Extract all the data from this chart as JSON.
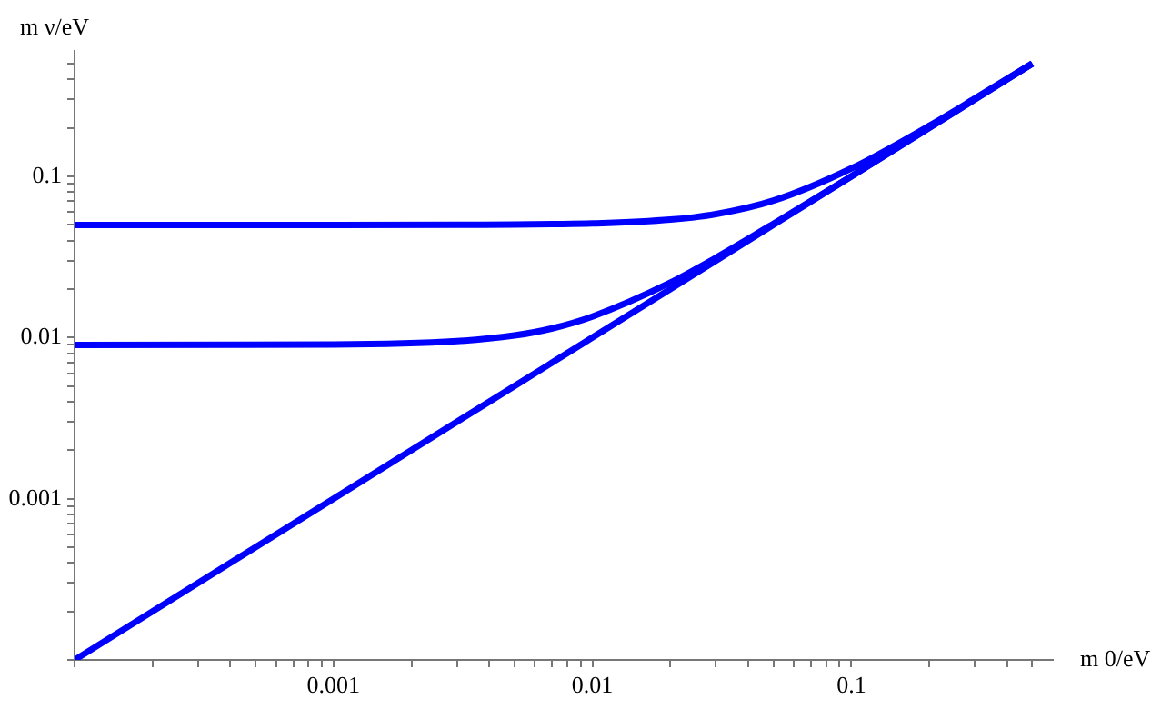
{
  "chart_data": {
    "type": "line",
    "xlabel": "m 0/eV",
    "ylabel": "m ν/eV",
    "log": "xy",
    "grid": false,
    "legend": false,
    "marker": "none",
    "line_style": "solid",
    "xlim": [
      0.0001,
      0.6
    ],
    "ylim": [
      0.0001,
      0.6
    ],
    "xticks": [
      {
        "value": 0.0001,
        "label": null
      },
      {
        "value": 0.0002,
        "label": null
      },
      {
        "value": 0.0003,
        "label": null
      },
      {
        "value": 0.0004,
        "label": null
      },
      {
        "value": 0.0005,
        "label": null
      },
      {
        "value": 0.0006,
        "label": null
      },
      {
        "value": 0.0007,
        "label": null
      },
      {
        "value": 0.0008,
        "label": null
      },
      {
        "value": 0.0009,
        "label": null
      },
      0.001,
      {
        "value": 0.002,
        "label": null
      },
      {
        "value": 0.003,
        "label": null
      },
      {
        "value": 0.004,
        "label": null
      },
      {
        "value": 0.005,
        "label": null
      },
      {
        "value": 0.006,
        "label": null
      },
      {
        "value": 0.007,
        "label": null
      },
      {
        "value": 0.008,
        "label": null
      },
      {
        "value": 0.009,
        "label": null
      },
      0.01,
      {
        "value": 0.02,
        "label": null
      },
      {
        "value": 0.03,
        "label": null
      },
      {
        "value": 0.04,
        "label": null
      },
      {
        "value": 0.05,
        "label": null
      },
      {
        "value": 0.06,
        "label": null
      },
      {
        "value": 0.07,
        "label": null
      },
      {
        "value": 0.08,
        "label": null
      },
      {
        "value": 0.09,
        "label": null
      },
      0.1,
      {
        "value": 0.2,
        "label": null
      },
      {
        "value": 0.3,
        "label": null
      },
      {
        "value": 0.4,
        "label": null
      },
      {
        "value": 0.5,
        "label": null
      }
    ],
    "yticks": [
      {
        "value": 0.0001,
        "label": null
      },
      {
        "value": 0.0002,
        "label": null
      },
      {
        "value": 0.0003,
        "label": null
      },
      {
        "value": 0.0004,
        "label": null
      },
      {
        "value": 0.0005,
        "label": null
      },
      {
        "value": 0.0006,
        "label": null
      },
      {
        "value": 0.0007,
        "label": null
      },
      {
        "value": 0.0008,
        "label": null
      },
      {
        "value": 0.0009,
        "label": null
      },
      0.001,
      {
        "value": 0.002,
        "label": null
      },
      {
        "value": 0.003,
        "label": null
      },
      {
        "value": 0.004,
        "label": null
      },
      {
        "value": 0.005,
        "label": null
      },
      {
        "value": 0.006,
        "label": null
      },
      {
        "value": 0.007,
        "label": null
      },
      {
        "value": 0.008,
        "label": null
      },
      {
        "value": 0.009,
        "label": null
      },
      0.01,
      {
        "value": 0.02,
        "label": null
      },
      {
        "value": 0.03,
        "label": null
      },
      {
        "value": 0.04,
        "label": null
      },
      {
        "value": 0.05,
        "label": null
      },
      {
        "value": 0.06,
        "label": null
      },
      {
        "value": 0.07,
        "label": null
      },
      {
        "value": 0.08,
        "label": null
      },
      {
        "value": 0.09,
        "label": null
      },
      0.1,
      {
        "value": 0.2,
        "label": null
      },
      {
        "value": 0.3,
        "label": null
      },
      {
        "value": 0.4,
        "label": null
      },
      {
        "value": 0.5,
        "label": null
      }
    ],
    "x": [
      0.0001,
      0.001,
      0.003,
      0.005,
      0.007,
      0.01,
      0.02,
      0.03,
      0.05,
      0.1,
      0.2,
      0.3,
      0.5
    ],
    "series": [
      {
        "color": "#0000ff",
        "values": [
          0.05,
          0.05,
          0.0501,
          0.0502,
          0.0505,
          0.051,
          0.0539,
          0.0583,
          0.0707,
          0.112,
          0.206,
          0.304,
          0.502
        ]
      },
      {
        "color": "#0000ff",
        "values": [
          0.009,
          0.00906,
          0.0095,
          0.0103,
          0.0114,
          0.0135,
          0.0219,
          0.0313,
          0.0508,
          0.1,
          0.2,
          0.3,
          0.5
        ]
      },
      {
        "color": "#0000ff",
        "values": [
          0.0001,
          0.001,
          0.003,
          0.005,
          0.007,
          0.01,
          0.02,
          0.03,
          0.05,
          0.1,
          0.2,
          0.3,
          0.5
        ]
      }
    ]
  }
}
